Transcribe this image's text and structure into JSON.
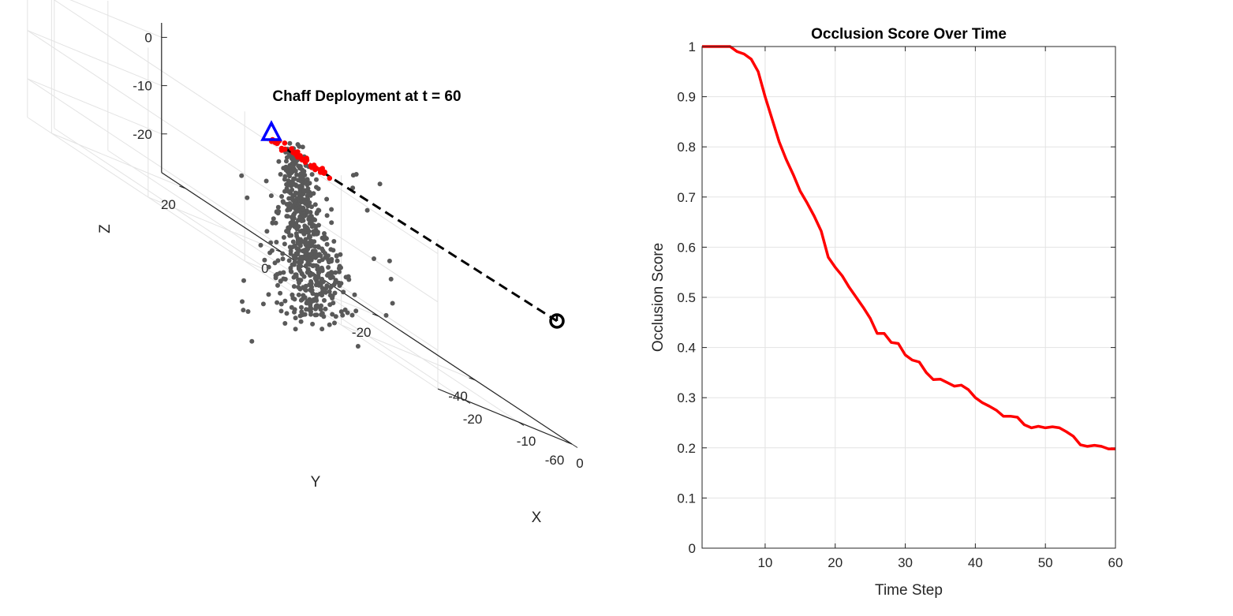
{
  "colors": {
    "chaff": "#595959",
    "red": "#ff0000",
    "target": "#0000ff",
    "sensor": "#000000",
    "grid": "#e0e0e0",
    "axis": "#262626"
  },
  "chart_data": [
    {
      "type": "scatter",
      "title": "Chaff Deployment at t = 60",
      "xlabel": "X",
      "ylabel": "Y",
      "zlabel": "Z",
      "xticks": [
        "-20",
        "-10",
        "0"
      ],
      "yticks": [
        "20",
        "0",
        "-20",
        "-40",
        "-60"
      ],
      "zticks": [
        "0",
        "-10",
        "-20"
      ],
      "xlim": [
        -25,
        0
      ],
      "ylim": [
        -60,
        25
      ],
      "zlim": [
        -28,
        3
      ],
      "grid": true,
      "markers": {
        "target": {
          "shape": "triangle",
          "color": "blue",
          "x": -25,
          "y": 25,
          "z": 3
        },
        "sensor": {
          "shape": "circle",
          "color": "black",
          "x": 0,
          "y": -60,
          "z": 3
        },
        "line_of_sight": {
          "style": "dashed",
          "color": "black"
        }
      },
      "chaff_count": 600
    },
    {
      "type": "line",
      "title": "Occlusion Score Over Time",
      "xlabel": "Time Step",
      "ylabel": "Occlusion Score",
      "xlim": [
        1,
        60
      ],
      "ylim": [
        0,
        1
      ],
      "xticks": [
        10,
        20,
        30,
        40,
        50,
        60
      ],
      "yticks": [
        0,
        0.1,
        0.2,
        0.3,
        0.4,
        0.5,
        0.6,
        0.7,
        0.8,
        0.9,
        1
      ],
      "grid": true,
      "series": [
        {
          "color": "red",
          "x": [
            1,
            2,
            3,
            4,
            5,
            6,
            7,
            8,
            9,
            10,
            11,
            12,
            13,
            14,
            15,
            16,
            17,
            18,
            19,
            20,
            21,
            22,
            23,
            24,
            25,
            26,
            27,
            28,
            29,
            30,
            31,
            32,
            33,
            34,
            35,
            36,
            37,
            38,
            39,
            40,
            41,
            42,
            43,
            44,
            45,
            46,
            47,
            48,
            49,
            50,
            51,
            52,
            53,
            54,
            55,
            56,
            57,
            58,
            59,
            60
          ],
          "y": [
            1.0,
            1.0,
            1.0,
            1.0,
            1.0,
            0.99,
            0.985,
            0.975,
            0.95,
            0.9,
            0.855,
            0.81,
            0.775,
            0.745,
            0.712,
            0.688,
            0.662,
            0.632,
            0.58,
            0.56,
            0.543,
            0.52,
            0.5,
            0.48,
            0.458,
            0.428,
            0.428,
            0.41,
            0.408,
            0.385,
            0.375,
            0.371,
            0.35,
            0.336,
            0.337,
            0.33,
            0.323,
            0.325,
            0.316,
            0.3,
            0.29,
            0.283,
            0.275,
            0.263,
            0.263,
            0.261,
            0.246,
            0.24,
            0.243,
            0.24,
            0.242,
            0.24,
            0.232,
            0.223,
            0.206,
            0.203,
            0.205,
            0.203,
            0.198,
            0.198
          ]
        }
      ]
    }
  ]
}
